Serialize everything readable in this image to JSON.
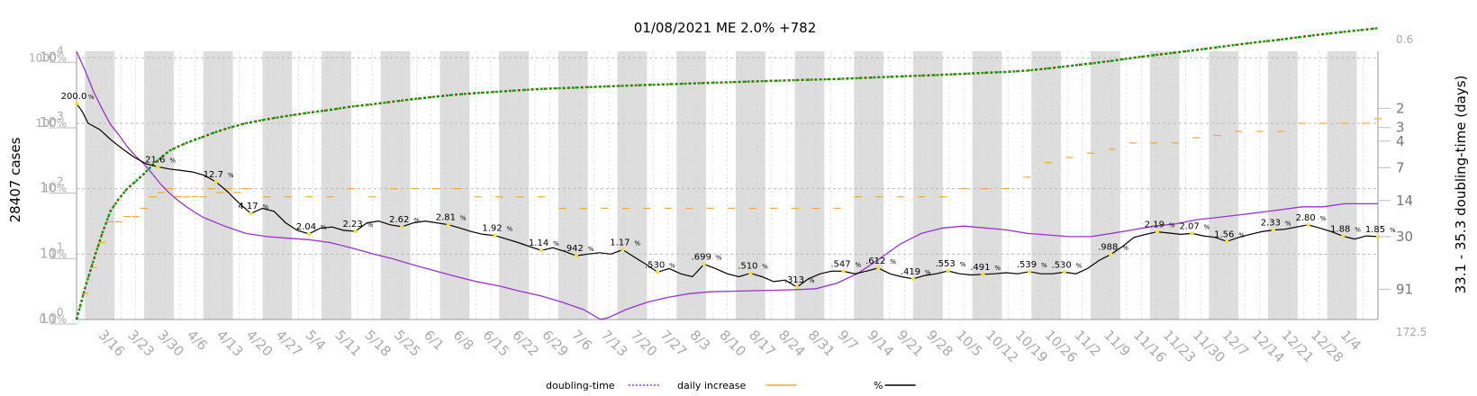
{
  "chart_data": {
    "type": "line",
    "title": "01/08/2021 ME 2.0% +782",
    "ylabel_left": "28407 cases",
    "ylabel_right": "33.1 - 35.3 doubling-time (days)",
    "left_ticks": [
      {
        "label": "10",
        "exp": "0",
        "value": 1
      },
      {
        "label": "10",
        "exp": "1",
        "value": 10
      },
      {
        "label": "10",
        "exp": "2",
        "value": 100
      },
      {
        "label": "10",
        "exp": "3",
        "value": 1000
      },
      {
        "label": "10",
        "exp": "4",
        "value": 10000
      }
    ],
    "percent_ticks": [
      "0.1%",
      "1%",
      "10%",
      "100%",
      "1000%"
    ],
    "right_ticks": [
      "0.6",
      "2",
      "3",
      "4",
      "7",
      "14",
      "30",
      "91",
      "172.5"
    ],
    "x_ticks": [
      "3/16",
      "3/23",
      "3/30",
      "4/6",
      "4/13",
      "4/20",
      "4/27",
      "5/4",
      "5/11",
      "5/18",
      "5/25",
      "6/1",
      "6/8",
      "6/15",
      "6/22",
      "6/29",
      "7/6",
      "7/13",
      "7/20",
      "7/27",
      "8/3",
      "8/10",
      "8/17",
      "8/24",
      "8/31",
      "9/7",
      "9/14",
      "9/21",
      "9/28",
      "10/5",
      "10/12",
      "10/19",
      "10/26",
      "11/2",
      "11/9",
      "11/16",
      "11/23",
      "11/30",
      "12/7",
      "12/14",
      "12/21",
      "12/28",
      "1/4"
    ],
    "cases": [
      [
        0,
        1
      ],
      [
        2,
        3
      ],
      [
        4,
        8
      ],
      [
        6,
        20
      ],
      [
        8,
        45
      ],
      [
        10,
        70
      ],
      [
        12,
        100
      ],
      [
        14,
        130
      ],
      [
        16,
        170
      ],
      [
        18,
        230
      ],
      [
        20,
        300
      ],
      [
        22,
        380
      ],
      [
        24,
        440
      ],
      [
        26,
        500
      ],
      [
        28,
        560
      ],
      [
        30,
        620
      ],
      [
        32,
        700
      ],
      [
        34,
        770
      ],
      [
        36,
        850
      ],
      [
        38,
        920
      ],
      [
        40,
        1000
      ],
      [
        45,
        1150
      ],
      [
        50,
        1300
      ],
      [
        55,
        1450
      ],
      [
        60,
        1600
      ],
      [
        65,
        1800
      ],
      [
        70,
        1950
      ],
      [
        75,
        2150
      ],
      [
        80,
        2350
      ],
      [
        85,
        2550
      ],
      [
        90,
        2750
      ],
      [
        95,
        2900
      ],
      [
        100,
        3050
      ],
      [
        105,
        3200
      ],
      [
        110,
        3350
      ],
      [
        115,
        3450
      ],
      [
        120,
        3550
      ],
      [
        125,
        3650
      ],
      [
        130,
        3750
      ],
      [
        135,
        3850
      ],
      [
        140,
        3950
      ],
      [
        145,
        4050
      ],
      [
        150,
        4150
      ],
      [
        155,
        4250
      ],
      [
        160,
        4350
      ],
      [
        165,
        4450
      ],
      [
        170,
        4550
      ],
      [
        175,
        4650
      ],
      [
        180,
        4750
      ],
      [
        185,
        4900
      ],
      [
        190,
        5050
      ],
      [
        195,
        5200
      ],
      [
        200,
        5350
      ],
      [
        205,
        5500
      ],
      [
        210,
        5700
      ],
      [
        215,
        5900
      ],
      [
        220,
        6100
      ],
      [
        225,
        6400
      ],
      [
        230,
        6900
      ],
      [
        235,
        7500
      ],
      [
        240,
        8200
      ],
      [
        245,
        9000
      ],
      [
        250,
        10000
      ],
      [
        255,
        11000
      ],
      [
        260,
        12000
      ],
      [
        265,
        13200
      ],
      [
        270,
        14500
      ],
      [
        275,
        16000
      ],
      [
        280,
        17500
      ],
      [
        285,
        19000
      ],
      [
        290,
        21000
      ],
      [
        295,
        23000
      ],
      [
        300,
        25000
      ],
      [
        305,
        27000
      ],
      [
        308,
        28407
      ]
    ],
    "percent_change": [
      [
        0,
        200
      ],
      [
        1,
        150
      ],
      [
        2,
        100
      ],
      [
        4,
        80
      ],
      [
        6,
        55
      ],
      [
        8,
        40
      ],
      [
        10,
        30
      ],
      [
        12,
        24
      ],
      [
        14,
        21.6
      ],
      [
        16,
        20
      ],
      [
        18,
        19
      ],
      [
        20,
        18
      ],
      [
        22,
        16
      ],
      [
        24,
        12.7
      ],
      [
        26,
        9
      ],
      [
        28,
        6
      ],
      [
        30,
        4.17
      ],
      [
        32,
        5
      ],
      [
        34,
        4.5
      ],
      [
        36,
        3
      ],
      [
        38,
        2.3
      ],
      [
        40,
        2.04
      ],
      [
        42,
        2.5
      ],
      [
        44,
        2.6
      ],
      [
        46,
        2.3
      ],
      [
        48,
        2.23
      ],
      [
        50,
        3
      ],
      [
        52,
        3.2
      ],
      [
        54,
        2.8
      ],
      [
        56,
        2.62
      ],
      [
        58,
        3
      ],
      [
        60,
        3.2
      ],
      [
        62,
        3
      ],
      [
        64,
        2.81
      ],
      [
        66,
        2.5
      ],
      [
        68,
        2.2
      ],
      [
        70,
        2
      ],
      [
        72,
        1.92
      ],
      [
        74,
        1.7
      ],
      [
        76,
        1.5
      ],
      [
        78,
        1.3
      ],
      [
        80,
        1.14
      ],
      [
        82,
        1.25
      ],
      [
        84,
        1.1
      ],
      [
        86,
        0.942
      ],
      [
        88,
        1.0
      ],
      [
        90,
        1.05
      ],
      [
        92,
        1.0
      ],
      [
        94,
        1.17
      ],
      [
        96,
        0.9
      ],
      [
        98,
        0.7
      ],
      [
        100,
        0.53
      ],
      [
        102,
        0.6
      ],
      [
        104,
        0.5
      ],
      [
        106,
        0.45
      ],
      [
        108,
        0.699
      ],
      [
        110,
        0.6
      ],
      [
        112,
        0.5
      ],
      [
        114,
        0.45
      ],
      [
        116,
        0.51
      ],
      [
        118,
        0.45
      ],
      [
        120,
        0.38
      ],
      [
        122,
        0.4
      ],
      [
        124,
        0.313
      ],
      [
        126,
        0.42
      ],
      [
        128,
        0.5
      ],
      [
        130,
        0.55
      ],
      [
        132,
        0.547
      ],
      [
        134,
        0.5
      ],
      [
        136,
        0.55
      ],
      [
        138,
        0.612
      ],
      [
        140,
        0.5
      ],
      [
        142,
        0.45
      ],
      [
        144,
        0.419
      ],
      [
        146,
        0.47
      ],
      [
        148,
        0.5
      ],
      [
        150,
        0.553
      ],
      [
        152,
        0.5
      ],
      [
        154,
        0.48
      ],
      [
        156,
        0.491
      ],
      [
        158,
        0.5
      ],
      [
        160,
        0.52
      ],
      [
        162,
        0.5
      ],
      [
        164,
        0.539
      ],
      [
        166,
        0.5
      ],
      [
        168,
        0.5
      ],
      [
        170,
        0.53
      ],
      [
        172,
        0.5
      ],
      [
        174,
        0.6
      ],
      [
        176,
        0.8
      ],
      [
        178,
        0.988
      ],
      [
        180,
        1.3
      ],
      [
        182,
        1.8
      ],
      [
        184,
        2.0
      ],
      [
        186,
        2.19
      ],
      [
        188,
        2.1
      ],
      [
        190,
        2.0
      ],
      [
        192,
        2.07
      ],
      [
        194,
        1.9
      ],
      [
        196,
        1.8
      ],
      [
        198,
        1.56
      ],
      [
        200,
        1.8
      ],
      [
        202,
        2.0
      ],
      [
        204,
        2.2
      ],
      [
        206,
        2.33
      ],
      [
        208,
        2.4
      ],
      [
        210,
        2.6
      ],
      [
        212,
        2.8
      ],
      [
        214,
        2.5
      ],
      [
        216,
        2.2
      ],
      [
        218,
        1.88
      ],
      [
        220,
        1.7
      ],
      [
        222,
        1.9
      ],
      [
        224,
        1.85
      ]
    ],
    "doubling_time": [
      [
        0,
        0.6
      ],
      [
        2,
        0.9
      ],
      [
        4,
        1.4
      ],
      [
        6,
        2.0
      ],
      [
        8,
        2.8
      ],
      [
        10,
        3.5
      ],
      [
        12,
        4.5
      ],
      [
        14,
        5.5
      ],
      [
        16,
        6.5
      ],
      [
        18,
        8
      ],
      [
        20,
        10
      ],
      [
        22,
        12
      ],
      [
        24,
        14
      ],
      [
        26,
        16
      ],
      [
        28,
        18
      ],
      [
        30,
        20
      ],
      [
        35,
        24
      ],
      [
        40,
        28
      ],
      [
        45,
        30
      ],
      [
        50,
        31
      ],
      [
        55,
        32
      ],
      [
        60,
        34
      ],
      [
        65,
        38
      ],
      [
        70,
        43
      ],
      [
        75,
        48
      ],
      [
        80,
        55
      ],
      [
        85,
        62
      ],
      [
        90,
        70
      ],
      [
        95,
        78
      ],
      [
        100,
        85
      ],
      [
        105,
        95
      ],
      [
        110,
        105
      ],
      [
        115,
        120
      ],
      [
        120,
        140
      ],
      [
        124,
        172.5
      ],
      [
        126,
        165
      ],
      [
        130,
        140
      ],
      [
        135,
        120
      ],
      [
        140,
        108
      ],
      [
        145,
        100
      ],
      [
        150,
        96
      ],
      [
        155,
        95
      ],
      [
        160,
        94
      ],
      [
        165,
        93
      ],
      [
        170,
        92
      ],
      [
        175,
        90
      ],
      [
        180,
        80
      ],
      [
        185,
        65
      ],
      [
        190,
        48
      ],
      [
        195,
        35
      ],
      [
        200,
        28
      ],
      [
        205,
        25
      ],
      [
        210,
        24
      ],
      [
        215,
        25
      ],
      [
        220,
        26
      ],
      [
        225,
        28
      ],
      [
        230,
        29
      ],
      [
        235,
        30
      ],
      [
        240,
        30
      ],
      [
        245,
        28
      ],
      [
        250,
        26
      ],
      [
        255,
        24
      ],
      [
        260,
        23
      ],
      [
        265,
        21
      ],
      [
        270,
        20
      ],
      [
        275,
        19
      ],
      [
        280,
        18
      ],
      [
        285,
        17
      ],
      [
        290,
        16
      ],
      [
        295,
        16
      ],
      [
        300,
        15
      ],
      [
        305,
        15
      ],
      [
        308,
        15
      ]
    ],
    "annotations": [
      {
        "label": "200.0",
        "pct": "%",
        "day": 0,
        "value": 200
      },
      {
        "label": "21.6",
        "pct": "%",
        "day": 14,
        "value": 21.6
      },
      {
        "label": "12.7",
        "pct": "%",
        "day": 24,
        "value": 12.7
      },
      {
        "label": "4.17",
        "pct": "%",
        "day": 30,
        "value": 4.17
      },
      {
        "label": "2.04",
        "pct": "%",
        "day": 40,
        "value": 2.04
      },
      {
        "label": "2.23",
        "pct": "%",
        "day": 48,
        "value": 2.23
      },
      {
        "label": "2.62",
        "pct": "%",
        "day": 56,
        "value": 2.62
      },
      {
        "label": "2.81",
        "pct": "%",
        "day": 64,
        "value": 2.81
      },
      {
        "label": "1.92",
        "pct": "%",
        "day": 72,
        "value": 1.92
      },
      {
        "label": "1.14",
        "pct": "%",
        "day": 80,
        "value": 1.14
      },
      {
        "label": ".942",
        "pct": "%",
        "day": 86,
        "value": 0.942
      },
      {
        "label": "1.17",
        "pct": "%",
        "day": 94,
        "value": 1.17
      },
      {
        "label": ".530",
        "pct": "%",
        "day": 100,
        "value": 0.53
      },
      {
        "label": ".699",
        "pct": "%",
        "day": 108,
        "value": 0.699
      },
      {
        "label": ".510",
        "pct": "%",
        "day": 116,
        "value": 0.51
      },
      {
        "label": ".313",
        "pct": "%",
        "day": 124,
        "value": 0.313
      },
      {
        "label": ".547",
        "pct": "%",
        "day": 132,
        "value": 0.547
      },
      {
        "label": ".612",
        "pct": "%",
        "day": 138,
        "value": 0.612
      },
      {
        "label": ".419",
        "pct": "%",
        "day": 144,
        "value": 0.419
      },
      {
        "label": ".553",
        "pct": "%",
        "day": 150,
        "value": 0.553
      },
      {
        "label": ".491",
        "pct": "%",
        "day": 156,
        "value": 0.491
      },
      {
        "label": ".539",
        "pct": "%",
        "day": 164,
        "value": 0.539
      },
      {
        "label": ".530",
        "pct": "%",
        "day": 170,
        "value": 0.53
      },
      {
        "label": ".988",
        "pct": "%",
        "day": 178,
        "value": 0.988
      },
      {
        "label": "2.19",
        "pct": "%",
        "day": 186,
        "value": 2.19
      },
      {
        "label": "2.07",
        "pct": "%",
        "day": 192,
        "value": 2.07
      },
      {
        "label": "1.56",
        "pct": "%",
        "day": 198,
        "value": 1.56
      },
      {
        "label": "2.33",
        "pct": "%",
        "day": 206,
        "value": 2.33
      },
      {
        "label": "2.80",
        "pct": "%",
        "day": 212,
        "value": 2.8
      },
      {
        "label": "1.88",
        "pct": "%",
        "day": 218,
        "value": 1.88
      },
      {
        "label": "1.85",
        "pct": "%",
        "day": 224,
        "value": 1.85
      }
    ],
    "legend": [
      {
        "name": "doubling-time",
        "color": "#9933cc",
        "style": "dotted"
      },
      {
        "name": "daily increase",
        "color": "#f0a830",
        "style": "solid"
      },
      {
        "name": "%",
        "color": "#000000",
        "style": "solid"
      }
    ],
    "colors": {
      "percent_line": "#000000",
      "doubling_line": "#9933cc",
      "daily_increase": "#f0a830",
      "cases_up": "#00aa00",
      "cases_down": "#cc0000",
      "marker": "#f0e040",
      "week_band": "#dddddd"
    },
    "grid": true,
    "legend_position": "bottom"
  }
}
